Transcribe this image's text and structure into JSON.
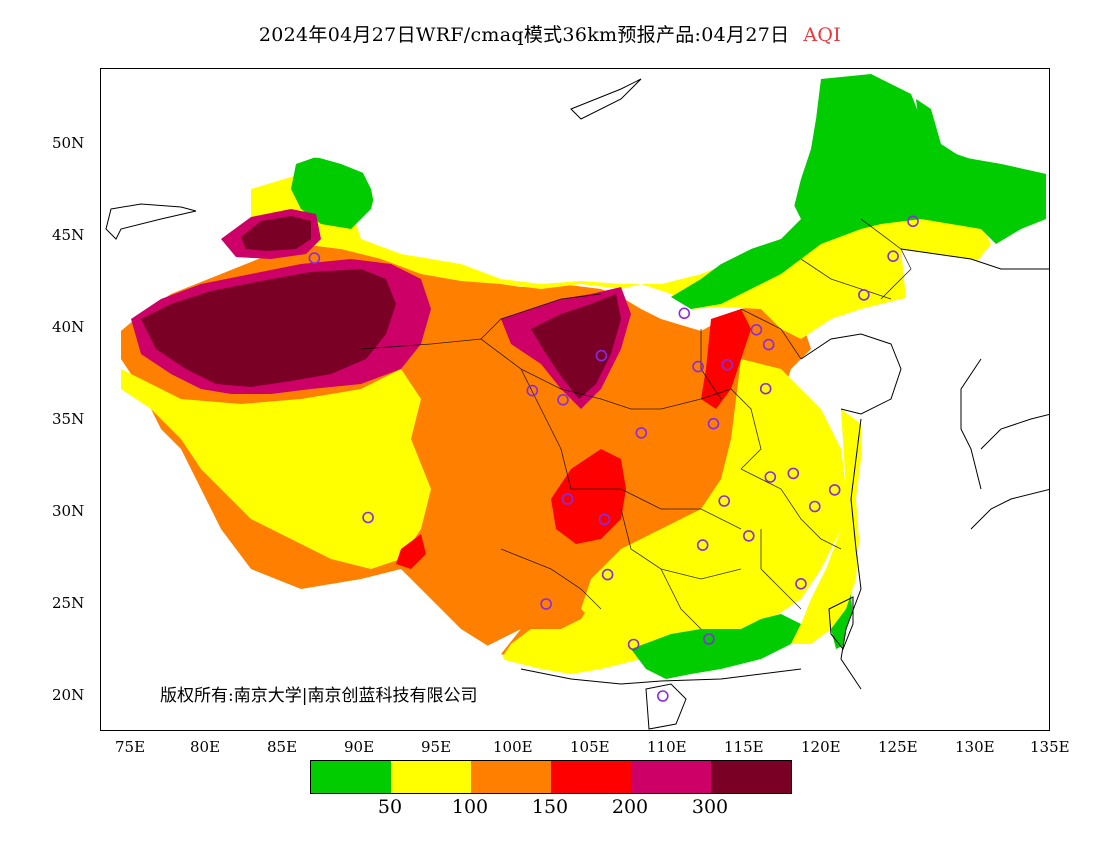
{
  "title": {
    "main": "2024年04月27日WRF/cmaq模式36km预报产品:04月27日",
    "variable": "AQI"
  },
  "axes": {
    "y_ticks": [
      "50N",
      "45N",
      "40N",
      "35N",
      "30N",
      "25N",
      "20N"
    ],
    "x_ticks": [
      "75E",
      "80E",
      "85E",
      "90E",
      "95E",
      "100E",
      "105E",
      "110E",
      "115E",
      "120E",
      "125E",
      "130E",
      "135E"
    ]
  },
  "copyright": "版权所有:南京大学|南京创蓝科技有限公司",
  "legend": {
    "colors": [
      "#00cc00",
      "#ffff00",
      "#ff8000",
      "#ff0000",
      "#cc0066",
      "#7a0026"
    ],
    "labels": [
      "50",
      "100",
      "150",
      "200",
      "300"
    ]
  },
  "chart_data": {
    "type": "heatmap",
    "title": "2024年04月27日WRF/cmaq模式36km预报产品:04月27日 AQI",
    "xlim": [
      73,
      135
    ],
    "ylim": [
      18,
      54
    ],
    "aqi_class_bounds": [
      50,
      100,
      150,
      200,
      300
    ],
    "stations": [
      {
        "lon": 87.6,
        "lat": 43.8
      },
      {
        "lon": 91.1,
        "lat": 29.7
      },
      {
        "lon": 101.8,
        "lat": 36.6
      },
      {
        "lon": 103.8,
        "lat": 36.1
      },
      {
        "lon": 106.3,
        "lat": 38.5
      },
      {
        "lon": 104.1,
        "lat": 30.7
      },
      {
        "lon": 106.5,
        "lat": 29.6
      },
      {
        "lon": 106.7,
        "lat": 26.6
      },
      {
        "lon": 102.7,
        "lat": 25.0
      },
      {
        "lon": 108.9,
        "lat": 34.3
      },
      {
        "lon": 111.7,
        "lat": 40.8
      },
      {
        "lon": 112.6,
        "lat": 37.9
      },
      {
        "lon": 114.5,
        "lat": 38.0
      },
      {
        "lon": 116.4,
        "lat": 39.9
      },
      {
        "lon": 117.2,
        "lat": 39.1
      },
      {
        "lon": 113.6,
        "lat": 34.8
      },
      {
        "lon": 117.0,
        "lat": 36.7
      },
      {
        "lon": 114.3,
        "lat": 30.6
      },
      {
        "lon": 112.9,
        "lat": 28.2
      },
      {
        "lon": 115.9,
        "lat": 28.7
      },
      {
        "lon": 117.3,
        "lat": 31.9
      },
      {
        "lon": 118.8,
        "lat": 32.1
      },
      {
        "lon": 120.2,
        "lat": 30.3
      },
      {
        "lon": 121.5,
        "lat": 31.2
      },
      {
        "lon": 119.3,
        "lat": 26.1
      },
      {
        "lon": 113.3,
        "lat": 23.1
      },
      {
        "lon": 108.4,
        "lat": 22.8
      },
      {
        "lon": 110.3,
        "lat": 20.0
      },
      {
        "lon": 123.4,
        "lat": 41.8
      },
      {
        "lon": 125.3,
        "lat": 43.9
      },
      {
        "lon": 126.6,
        "lat": 45.8
      }
    ]
  }
}
